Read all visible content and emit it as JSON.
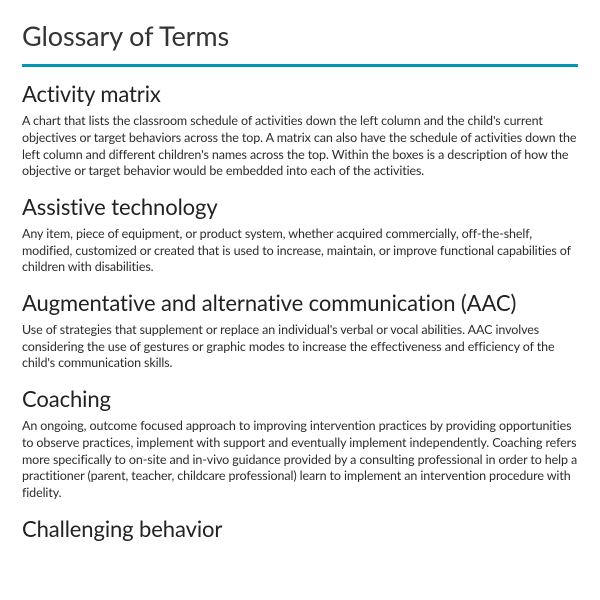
{
  "page": {
    "title": "Glossary of Terms",
    "divider_color": "#0097b2"
  },
  "terms": [
    {
      "title": "Activity matrix",
      "definition": "A chart that lists the classroom schedule of activities down the left column and the child's current objectives or target behaviors across the top. A matrix can also have the schedule of activities down the left column and different children's names across the top. Within the boxes is a description of how the objective or target behavior would be embedded into each of the activities."
    },
    {
      "title": "Assistive technology",
      "definition": "Any item, piece of equipment, or product system, whether acquired commercially, off-the-shelf, modified, customized or created that is used to increase, maintain, or improve functional capabilities of children with disabilities."
    },
    {
      "title": "Augmentative and alternative communication (AAC)",
      "definition": "Use of strategies that supplement or replace an individual's verbal or vocal abilities. AAC involves considering the use of gestures or graphic modes to increase the effectiveness and efficiency of the child's communication skills."
    },
    {
      "title": "Coaching",
      "definition": "An ongoing, outcome focused approach to improving intervention practices by providing opportunities to observe practices, implement with support and eventually implement independently.  Coaching refers more specifically to on-site and in-vivo guidance provided by a consulting professional in order to help a practitioner (parent, teacher, childcare professional) learn to implement an intervention procedure with fidelity."
    },
    {
      "title": "Challenging behavior",
      "definition": ""
    }
  ]
}
